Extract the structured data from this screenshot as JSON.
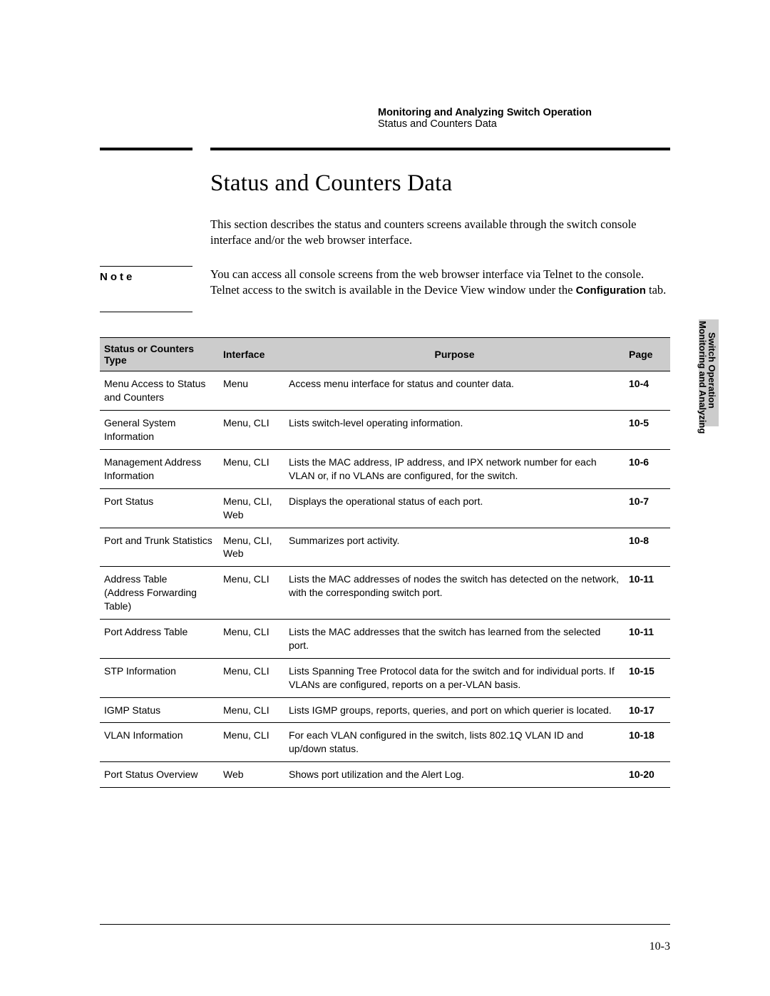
{
  "header": {
    "line1": "Monitoring and Analyzing Switch Operation",
    "line2": "Status and Counters Data"
  },
  "section": {
    "title": "Status and Counters Data",
    "intro": "This section describes the status and counters screens available through the switch console interface and/or the web browser interface."
  },
  "note": {
    "label": "Note",
    "body_pre": "You can access all console screens from the web browser interface via Telnet to the console. Telnet access to the switch is available in the Device View window under the ",
    "body_bold": "Configuration",
    "body_post": " tab."
  },
  "table": {
    "headers": {
      "type": "Status or Counters Type",
      "interface": "Interface",
      "purpose": "Purpose",
      "page": "Page"
    },
    "rows": [
      {
        "type": "Menu Access to Status and Counters",
        "interface": "Menu",
        "purpose": "Access menu interface for status and counter data.",
        "page": "10-4"
      },
      {
        "type": "General System Information",
        "interface": "Menu, CLI",
        "purpose": "Lists switch-level operating information.",
        "page": "10-5"
      },
      {
        "type": "Management Address Information",
        "interface": "Menu, CLI",
        "purpose": "Lists the MAC address, IP address, and IPX network number for each VLAN or, if no VLANs are configured, for the switch.",
        "page": "10-6"
      },
      {
        "type": "Port Status",
        "interface": "Menu, CLI, Web",
        "purpose": "Displays the operational status of each port.",
        "page": "10-7"
      },
      {
        "type": "Port and Trunk Statistics",
        "interface": "Menu, CLI, Web",
        "purpose": "Summarizes port activity.",
        "page": "10-8"
      },
      {
        "type": "Address Table\n(Address Forwarding Table)",
        "interface": "Menu, CLI",
        "purpose": "Lists the MAC addresses of nodes the switch has detected on the network, with the corresponding switch port.",
        "page": "10-11"
      },
      {
        "type": "Port Address Table",
        "interface": "Menu, CLI",
        "purpose": "Lists the MAC addresses that the switch has learned from the selected port.",
        "page": "10-11"
      },
      {
        "type": "STP Information",
        "interface": "Menu, CLI",
        "purpose": "Lists Spanning Tree Protocol data for the switch and for individual ports. If VLANs are configured, reports on a per-VLAN basis.",
        "page": "10-15"
      },
      {
        "type": "IGMP Status",
        "interface": "Menu, CLI",
        "purpose": "Lists IGMP groups, reports, queries, and port on which querier is located.",
        "page": "10-17"
      },
      {
        "type": "VLAN Information",
        "interface": "Menu, CLI",
        "purpose": "For each VLAN configured in the switch, lists 802.1Q VLAN ID and up/down status.",
        "page": "10-18"
      },
      {
        "type": "Port Status Overview",
        "interface": "Web",
        "purpose": "Shows port utilization and the Alert Log.",
        "page": "10-20"
      }
    ]
  },
  "sidetab": {
    "line1": "Monitoring and Analyzing",
    "line2": "Switch Operation"
  },
  "page_number": "10-3"
}
